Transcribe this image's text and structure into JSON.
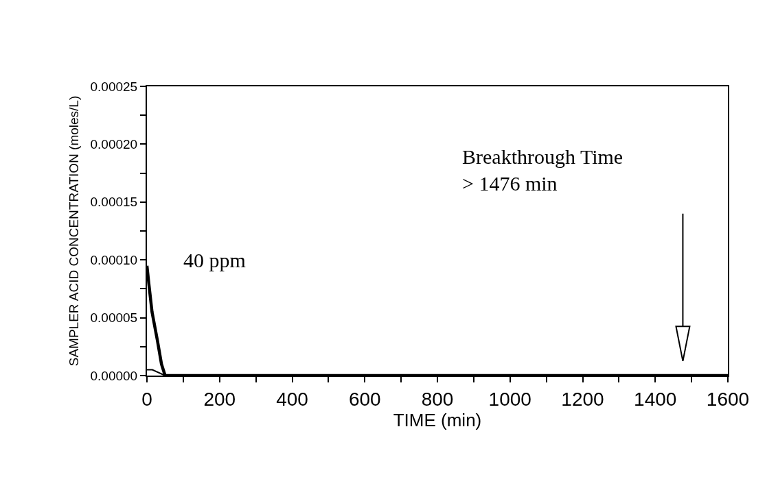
{
  "chart_data": {
    "type": "line",
    "xlabel": "TIME (min)",
    "ylabel": "SAMPLER ACID CONCENTRATION (moles/L)",
    "series": [
      {
        "color": "#000000",
        "x": [
          0,
          5,
          14,
          29,
          40,
          50,
          65,
          100,
          1600
        ],
        "values": [
          9.5e-05,
          8e-05,
          5.5e-05,
          3e-05,
          1e-05,
          0,
          0,
          0,
          0
        ]
      },
      {
        "color": "#000000",
        "x": [
          0,
          15,
          50
        ],
        "values": [
          5e-06,
          5e-06,
          0
        ]
      }
    ],
    "xlim": [
      0,
      1600
    ],
    "ylim": [
      0,
      0.00025
    ],
    "xticks": [
      0,
      {
        "value": 100,
        "label": null
      },
      200,
      {
        "value": 300,
        "label": null
      },
      400,
      {
        "value": 500,
        "label": null
      },
      600,
      {
        "value": 700,
        "label": null
      },
      800,
      {
        "value": 900,
        "label": null
      },
      1000,
      {
        "value": 1100,
        "label": null
      },
      1200,
      {
        "value": 1300,
        "label": null
      },
      1400,
      {
        "value": 1500,
        "label": null
      },
      1600
    ],
    "yticks": [
      {
        "value": 0,
        "label": "0.00000"
      },
      {
        "value": 2.5e-05,
        "label": null
      },
      {
        "value": 5e-05,
        "label": "0.00005"
      },
      {
        "value": 7.5e-05,
        "label": null
      },
      {
        "value": 0.0001,
        "label": "0.00010"
      },
      {
        "value": 0.000125,
        "label": null
      },
      {
        "value": 0.00015,
        "label": "0.00015"
      },
      {
        "value": 0.000175,
        "label": null
      },
      {
        "value": 0.0002,
        "label": "0.00020"
      },
      {
        "value": 0.000225,
        "label": null
      },
      {
        "value": 0.00025,
        "label": "0.00025"
      }
    ],
    "annotations": [
      "Breakthrough Time\n> 1476 min",
      "40 ppm"
    ],
    "ref_lines": [
      {
        "axis": "x",
        "value": 1476,
        "line_style": "solid",
        "color": "#000000"
      }
    ],
    "marker": "none",
    "line_style": "solid"
  }
}
